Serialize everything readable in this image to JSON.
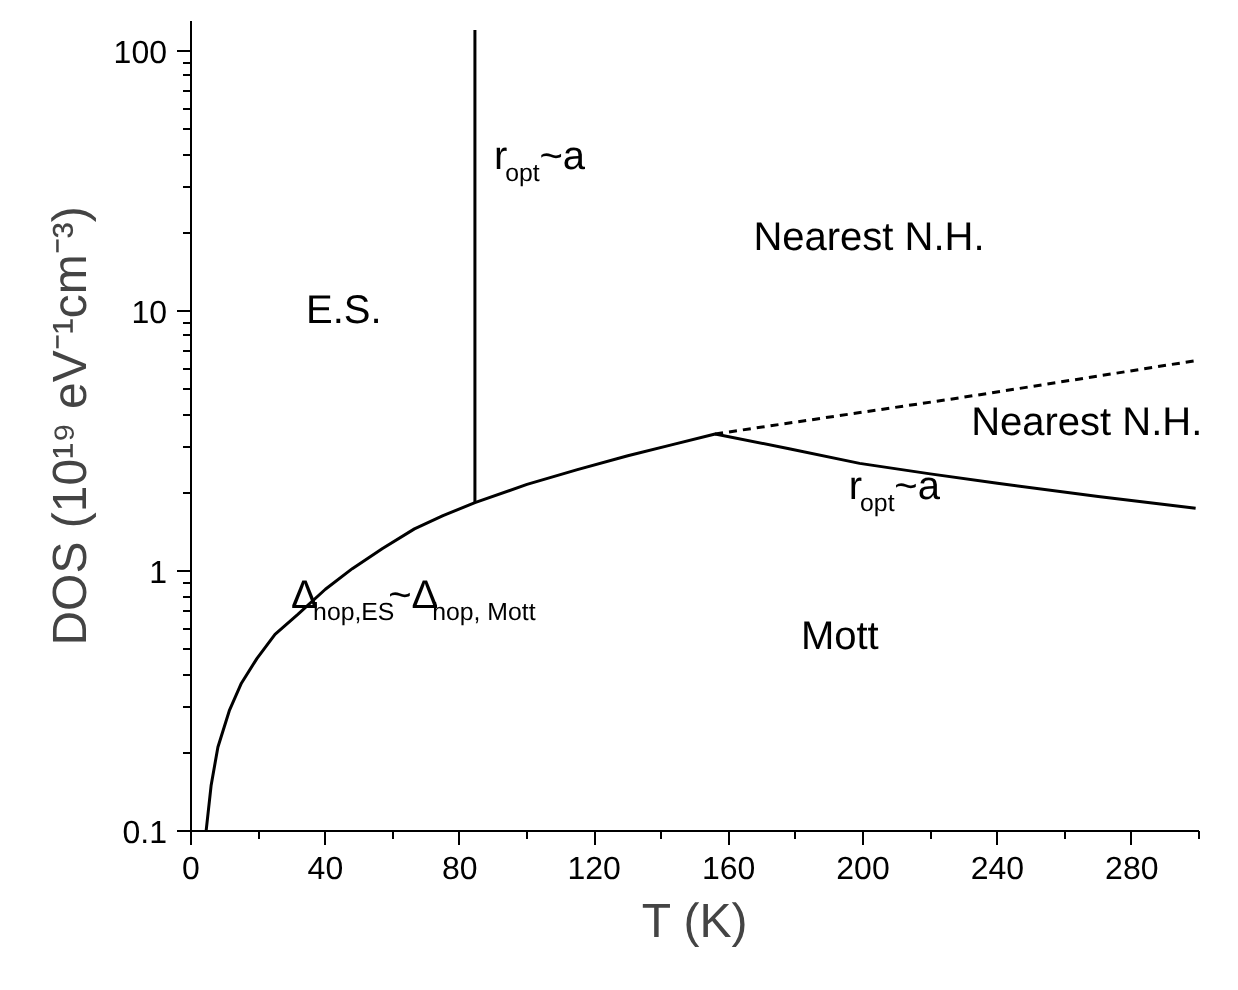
{
  "chart_data": {
    "type": "line",
    "xlabel": "T (K)",
    "ylabel": "DOS (10¹⁹ eV⁻¹cm⁻³)",
    "log": "y",
    "xlim": [
      0,
      300
    ],
    "ylim": [
      0.1,
      130
    ],
    "xticks": [
      0,
      {
        "value": 20,
        "label": null
      },
      40,
      {
        "value": 60,
        "label": null
      },
      80,
      {
        "value": 100,
        "label": null
      },
      120,
      {
        "value": 140,
        "label": null
      },
      160,
      {
        "value": 180,
        "label": null
      },
      200,
      {
        "value": 220,
        "label": null
      },
      240,
      {
        "value": 260,
        "label": null
      },
      280,
      {
        "value": 300,
        "label": null
      }
    ],
    "yticks": [
      0.1,
      1,
      10,
      100
    ],
    "series": [
      {
        "color": "#000000",
        "line_style": "solid",
        "x": [
          4.5,
          6,
          8,
          11.4,
          15,
          19.6,
          25,
          31.8,
          40,
          48,
          57,
          66.5,
          75,
          84.5,
          100,
          115,
          130,
          143,
          156,
          178,
          199,
          220,
          240,
          270,
          299
        ],
        "values": [
          0.1,
          0.15,
          0.21,
          0.29,
          0.37,
          0.46,
          0.57,
          0.68,
          0.85,
          1.02,
          1.22,
          1.45,
          1.63,
          1.83,
          2.15,
          2.45,
          2.77,
          3.05,
          3.36,
          2.95,
          2.59,
          2.36,
          2.17,
          1.93,
          1.74
        ]
      },
      {
        "color": "#000000",
        "line_style": "solid",
        "x": [
          84.5,
          84.5
        ],
        "values": [
          1.83,
          120
        ]
      },
      {
        "color": "#000000",
        "line_style": "dashed",
        "x": [
          156,
          228,
          299
        ],
        "values": [
          3.36,
          4.61,
          6.43
        ]
      }
    ],
    "annotations": [
      "E.S.",
      "r$_{opt}$~a",
      "Nearest N.H.",
      "Nearest N.H.",
      "r$_{opt}$~a",
      "Mott",
      "Δ$_{hop,ES}$~Δ$_{hop, Mott}$"
    ]
  }
}
